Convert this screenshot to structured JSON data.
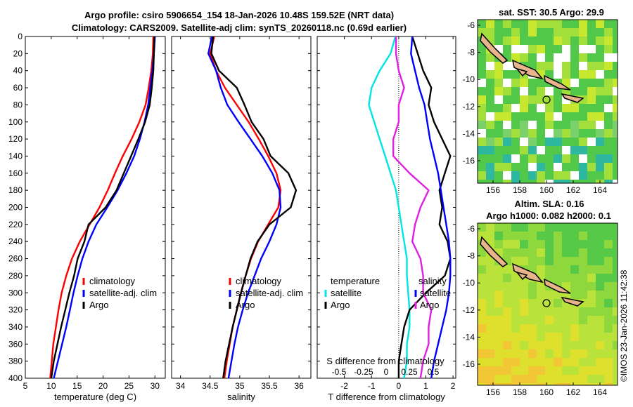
{
  "header": {
    "title_line1": "Argo profile: csiro 5906654_154 18-Jan-2026 10.48S 159.52E (NRT data)",
    "title_line2": "Climatology: CARS2009. Satellite-adj clim: synTS_20260118.nc (0.69d earlier)"
  },
  "colors": {
    "clim": "#ff0000",
    "sat": "#0000ff",
    "argo": "#000000",
    "temp_diff": "#00e5e5",
    "sal_diff": "#e020e0"
  },
  "chart_data": [
    {
      "id": "temperature",
      "type": "line",
      "xlabel": "temperature (deg C)",
      "ylabel": "depth (m)",
      "xlim": [
        5,
        32
      ],
      "ylim": [
        0,
        400
      ],
      "y_reversed": true,
      "xticks": [
        5,
        10,
        15,
        20,
        25,
        30
      ],
      "yticks": [
        0,
        20,
        40,
        60,
        80,
        100,
        120,
        140,
        160,
        180,
        200,
        220,
        240,
        260,
        280,
        300,
        320,
        340,
        360,
        380,
        400
      ],
      "legend": [
        "climatology",
        "satellite-adj. clim",
        "Argo"
      ],
      "series": [
        {
          "name": "climatology",
          "color": "#ff0000",
          "x": [
            29.7,
            29.6,
            29.3,
            28.8,
            28.2,
            27.0,
            25.5,
            23.8,
            22.3,
            20.9,
            19.3,
            17.4,
            15.5,
            14.0,
            12.9,
            12.0,
            11.4,
            10.9,
            10.4,
            10.1,
            9.8
          ],
          "y": [
            0,
            20,
            40,
            60,
            80,
            100,
            120,
            140,
            160,
            180,
            200,
            220,
            240,
            260,
            280,
            300,
            320,
            340,
            360,
            380,
            400
          ]
        },
        {
          "name": "satellite-adj. clim",
          "color": "#0000ff",
          "x": [
            30.0,
            29.8,
            29.5,
            29.1,
            28.7,
            28.0,
            27.1,
            26.0,
            24.5,
            22.8,
            20.8,
            18.7,
            17.2,
            16.0,
            15.1,
            14.3,
            13.6,
            12.9,
            12.1,
            11.3,
            10.5
          ],
          "y": [
            0,
            20,
            40,
            60,
            80,
            100,
            120,
            140,
            160,
            180,
            200,
            220,
            240,
            260,
            280,
            300,
            320,
            340,
            360,
            380,
            400
          ]
        },
        {
          "name": "Argo",
          "color": "#000000",
          "x": [
            29.9,
            29.8,
            29.7,
            29.4,
            29.0,
            28.1,
            26.8,
            25.4,
            24.0,
            22.6,
            20.5,
            17.2,
            16.4,
            15.1,
            14.4,
            13.5,
            12.7,
            11.9,
            11.2,
            10.5,
            10.0
          ],
          "y": [
            0,
            20,
            40,
            60,
            80,
            100,
            120,
            140,
            160,
            180,
            200,
            220,
            240,
            260,
            280,
            300,
            320,
            340,
            360,
            380,
            400
          ]
        }
      ]
    },
    {
      "id": "salinity",
      "type": "line",
      "xlabel": "salinity",
      "xlim": [
        33.85,
        36.2
      ],
      "ylim": [
        0,
        400
      ],
      "xticks": [
        34,
        34.5,
        35,
        35.5,
        36
      ],
      "legend": [
        "climatology",
        "satellite-adj. clim",
        "Argo"
      ],
      "series": [
        {
          "name": "climatology",
          "color": "#ff0000",
          "x": [
            34.57,
            34.5,
            34.6,
            34.75,
            34.95,
            35.15,
            35.32,
            35.48,
            35.62,
            35.69,
            35.65,
            35.48,
            35.31,
            35.19,
            35.1,
            35.02,
            34.95,
            34.88,
            34.83,
            34.78,
            34.74
          ],
          "y": [
            0,
            20,
            40,
            60,
            80,
            100,
            120,
            140,
            160,
            180,
            200,
            220,
            240,
            260,
            280,
            300,
            320,
            340,
            360,
            380,
            400
          ]
        },
        {
          "name": "satellite-adj. clim",
          "color": "#0000ff",
          "x": [
            34.53,
            34.47,
            34.6,
            34.68,
            34.79,
            34.98,
            35.18,
            35.38,
            35.55,
            35.67,
            35.69,
            35.62,
            35.5,
            35.36,
            35.25,
            35.14,
            35.05,
            34.97,
            34.91,
            34.86,
            34.81
          ],
          "y": [
            0,
            20,
            40,
            60,
            80,
            100,
            120,
            140,
            160,
            180,
            200,
            220,
            240,
            260,
            280,
            300,
            320,
            340,
            360,
            380,
            400
          ]
        },
        {
          "name": "Argo",
          "color": "#000000",
          "x": [
            34.55,
            34.52,
            34.65,
            34.95,
            35.08,
            35.2,
            35.4,
            35.52,
            35.82,
            35.95,
            35.86,
            35.5,
            35.3,
            35.18,
            35.1,
            35.02,
            34.95,
            34.88,
            34.82,
            34.76,
            34.72
          ],
          "y": [
            0,
            20,
            40,
            60,
            80,
            100,
            120,
            140,
            160,
            180,
            200,
            220,
            240,
            260,
            280,
            300,
            320,
            340,
            360,
            380,
            400
          ]
        }
      ]
    },
    {
      "id": "differences",
      "type": "line",
      "xlabel": "T difference from climatology",
      "xlim": [
        -3,
        2.1
      ],
      "ylim": [
        0,
        400
      ],
      "xticks": [
        -2,
        -1,
        0,
        1,
        2
      ],
      "secondary_axis_title": "S difference from climatology",
      "secondary_ticks": [
        "-0.5",
        "-0.25",
        "0",
        "0.25",
        "0.5"
      ],
      "legend_left_title": "temperature",
      "legend_right_title": "salinity",
      "legend": [
        "satellite",
        "Argo"
      ],
      "series": [
        {
          "name": "temperature satellite",
          "color": "#00e5e5",
          "x": [
            -0.12,
            -0.3,
            -0.7,
            -1.0,
            -1.1,
            -0.9,
            -0.7,
            -0.5,
            -0.3,
            -0.1,
            0.0,
            0.1,
            0.2,
            0.3,
            0.3,
            0.35,
            0.4,
            0.4,
            0.3,
            0.3,
            0.2
          ],
          "y": [
            0,
            20,
            40,
            60,
            80,
            100,
            120,
            140,
            160,
            180,
            200,
            220,
            240,
            260,
            280,
            300,
            320,
            340,
            360,
            380,
            400
          ]
        },
        {
          "name": "temperature Argo",
          "color": "#000000",
          "x": [
            0.5,
            0.7,
            0.9,
            1.2,
            1.1,
            1.3,
            1.6,
            1.9,
            1.7,
            1.5,
            1.6,
            1.5,
            1.8,
            1.9,
            1.7,
            1.0,
            0.4,
            0.2,
            0.1,
            0.0,
            0.0
          ],
          "y": [
            0,
            20,
            40,
            60,
            80,
            100,
            120,
            140,
            160,
            180,
            200,
            220,
            240,
            260,
            280,
            300,
            320,
            340,
            360,
            380,
            400
          ]
        },
        {
          "name": "salinity satellite",
          "color": "#0000ff",
          "x": [
            0.5,
            0.45,
            0.6,
            0.75,
            0.95,
            1.05,
            1.15,
            1.3,
            1.45,
            1.55,
            1.65,
            1.75,
            1.85,
            1.9,
            1.9,
            1.85,
            1.75,
            1.6,
            1.45,
            1.3,
            1.2
          ],
          "y": [
            0,
            20,
            40,
            60,
            80,
            100,
            120,
            140,
            160,
            180,
            200,
            220,
            240,
            260,
            280,
            300,
            320,
            340,
            360,
            380,
            400
          ]
        },
        {
          "name": "salinity Argo",
          "color": "#e020e0",
          "x": [
            -0.1,
            -0.1,
            0.0,
            0.2,
            0.0,
            0.0,
            -0.2,
            -0.2,
            0.4,
            1.1,
            0.8,
            0.6,
            0.5,
            0.8,
            0.9,
            0.9,
            1.2,
            1.1,
            1.1,
            0.9,
            0.8
          ],
          "y": [
            0,
            20,
            40,
            60,
            80,
            100,
            120,
            140,
            160,
            180,
            200,
            220,
            240,
            260,
            280,
            300,
            320,
            340,
            360,
            380,
            400
          ]
        }
      ]
    }
  ],
  "maps": {
    "sst": {
      "title": "sat. SST: 30.5 Argo: 29.9",
      "xticks": [
        "156",
        "158",
        "160",
        "162",
        "164"
      ],
      "yticks": [
        "-6",
        "-8",
        "-10",
        "-12",
        "-14",
        "-16"
      ]
    },
    "sla": {
      "title_line1": "Altim. SLA: 0.16",
      "title_line2": "Argo h1000: 0.082 h2000: 0.1",
      "xticks": [
        "156",
        "158",
        "160",
        "162",
        "164"
      ],
      "yticks": [
        "-6",
        "-8",
        "-10",
        "-12",
        "-14",
        "-16"
      ]
    }
  },
  "stamp": "©IMOS 23-Jan-2026 11:42:38"
}
